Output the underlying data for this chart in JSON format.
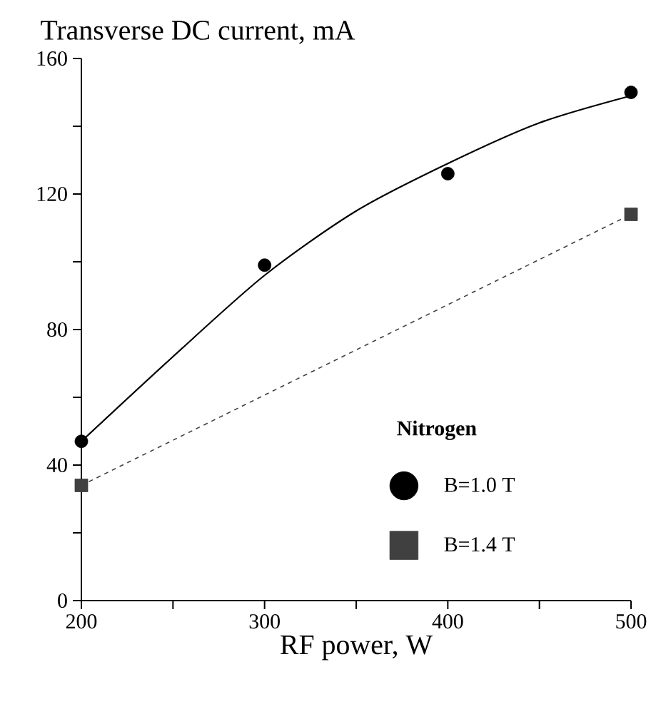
{
  "chart_data": {
    "type": "scatter",
    "ylabel": "Transverse DC current, mA",
    "xlabel": "RF power, W",
    "legend_title": "Nitrogen",
    "legend": "bottom right",
    "xlim": [
      200,
      500
    ],
    "xticks": [
      200,
      300,
      400,
      500
    ],
    "ylim": [
      0,
      160
    ],
    "yticks": [
      0,
      40,
      80,
      120,
      160
    ],
    "series": [
      {
        "name": "B=1.0 T",
        "type": "scatter",
        "marker": "circle",
        "color": "#000000",
        "x": [
          200,
          300,
          400,
          500
        ],
        "values": [
          47,
          99,
          126,
          150
        ]
      },
      {
        "name": "B=1.4 T",
        "type": "scatter",
        "marker": "square",
        "color": "#404040",
        "x": [
          200,
          500
        ],
        "values": [
          34,
          114
        ]
      },
      {
        "type": "line",
        "line_style": "solid",
        "marker": "none",
        "color": "#000000",
        "x": [
          200,
          250,
          300,
          350,
          400,
          450,
          500
        ],
        "values": [
          47,
          72,
          96,
          115,
          129,
          141,
          149
        ]
      },
      {
        "type": "line",
        "line_style": "dashed",
        "marker": "none",
        "color": "#404040",
        "x": [
          200,
          500
        ],
        "values": [
          34,
          114
        ]
      }
    ]
  }
}
